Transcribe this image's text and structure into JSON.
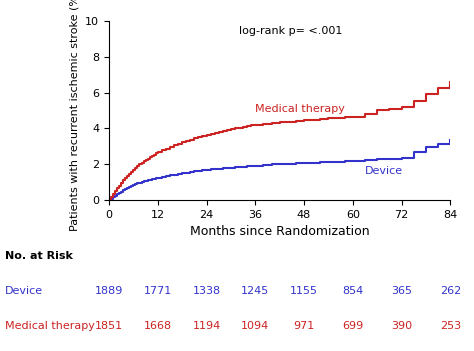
{
  "chart_data": {
    "type": "step",
    "xlabel": "Months since Randomization",
    "ylabel": "Patients with recurrent ischemic stroke (%)",
    "annotations": [
      "log-rank p= <.001"
    ],
    "xlim": [
      0,
      84
    ],
    "ylim": [
      0,
      10
    ],
    "xticks": [
      0,
      12,
      24,
      36,
      48,
      60,
      72,
      84
    ],
    "yticks": [
      0,
      2,
      4,
      6,
      8,
      10
    ],
    "grid": false,
    "x": [
      0,
      0.5,
      1,
      1.5,
      2,
      2.5,
      3,
      3.5,
      4,
      4.5,
      5,
      5.5,
      6,
      6.5,
      7,
      7.5,
      8,
      8.5,
      9,
      9.5,
      10,
      10.5,
      11,
      11.5,
      12,
      13,
      14,
      15,
      16,
      17,
      18,
      19,
      20,
      21,
      22,
      23,
      24,
      25,
      26,
      27,
      28,
      29,
      30,
      31,
      32,
      33,
      34,
      35,
      36,
      38,
      40,
      42,
      44,
      46,
      48,
      50,
      52,
      54,
      56,
      58,
      60,
      63,
      66,
      69,
      72,
      75,
      78,
      81,
      84
    ],
    "series": [
      {
        "name": "Device",
        "color": "#3333cc",
        "values": [
          0,
          0.08,
          0.17,
          0.25,
          0.33,
          0.4,
          0.47,
          0.54,
          0.6,
          0.66,
          0.72,
          0.78,
          0.83,
          0.88,
          0.93,
          0.97,
          1.01,
          1.05,
          1.08,
          1.11,
          1.14,
          1.17,
          1.2,
          1.23,
          1.25,
          1.3,
          1.34,
          1.38,
          1.42,
          1.46,
          1.5,
          1.54,
          1.57,
          1.6,
          1.63,
          1.66,
          1.68,
          1.71,
          1.73,
          1.75,
          1.77,
          1.79,
          1.81,
          1.82,
          1.84,
          1.86,
          1.88,
          1.9,
          1.92,
          1.96,
          1.99,
          2.01,
          2.03,
          2.05,
          2.07,
          2.09,
          2.11,
          2.13,
          2.15,
          2.17,
          2.19,
          2.24,
          2.28,
          2.31,
          2.35,
          2.7,
          2.95,
          3.15,
          3.35
        ],
        "at_risk": [
          1889,
          1771,
          1338,
          1245,
          1155,
          854,
          365,
          262
        ]
      },
      {
        "name": "Medical therapy",
        "color": "#cc2222",
        "values": [
          0,
          0.16,
          0.33,
          0.49,
          0.65,
          0.81,
          0.96,
          1.1,
          1.23,
          1.36,
          1.48,
          1.59,
          1.7,
          1.8,
          1.9,
          1.99,
          2.08,
          2.16,
          2.24,
          2.32,
          2.4,
          2.47,
          2.54,
          2.61,
          2.67,
          2.78,
          2.88,
          2.98,
          3.07,
          3.14,
          3.22,
          3.3,
          3.38,
          3.46,
          3.53,
          3.59,
          3.65,
          3.71,
          3.77,
          3.83,
          3.88,
          3.93,
          3.97,
          4.01,
          4.05,
          4.09,
          4.13,
          4.17,
          4.21,
          4.26,
          4.3,
          4.34,
          4.38,
          4.42,
          4.46,
          4.5,
          4.54,
          4.58,
          4.61,
          4.63,
          4.65,
          4.8,
          5.05,
          5.1,
          5.18,
          5.55,
          5.92,
          6.28,
          6.6
        ],
        "at_risk": [
          1851,
          1668,
          1194,
          1094,
          971,
          699,
          390,
          253
        ]
      }
    ],
    "risk_table_title": "No. at Risk",
    "risk_x": [
      0,
      12,
      24,
      36,
      48,
      60,
      72,
      84
    ]
  }
}
